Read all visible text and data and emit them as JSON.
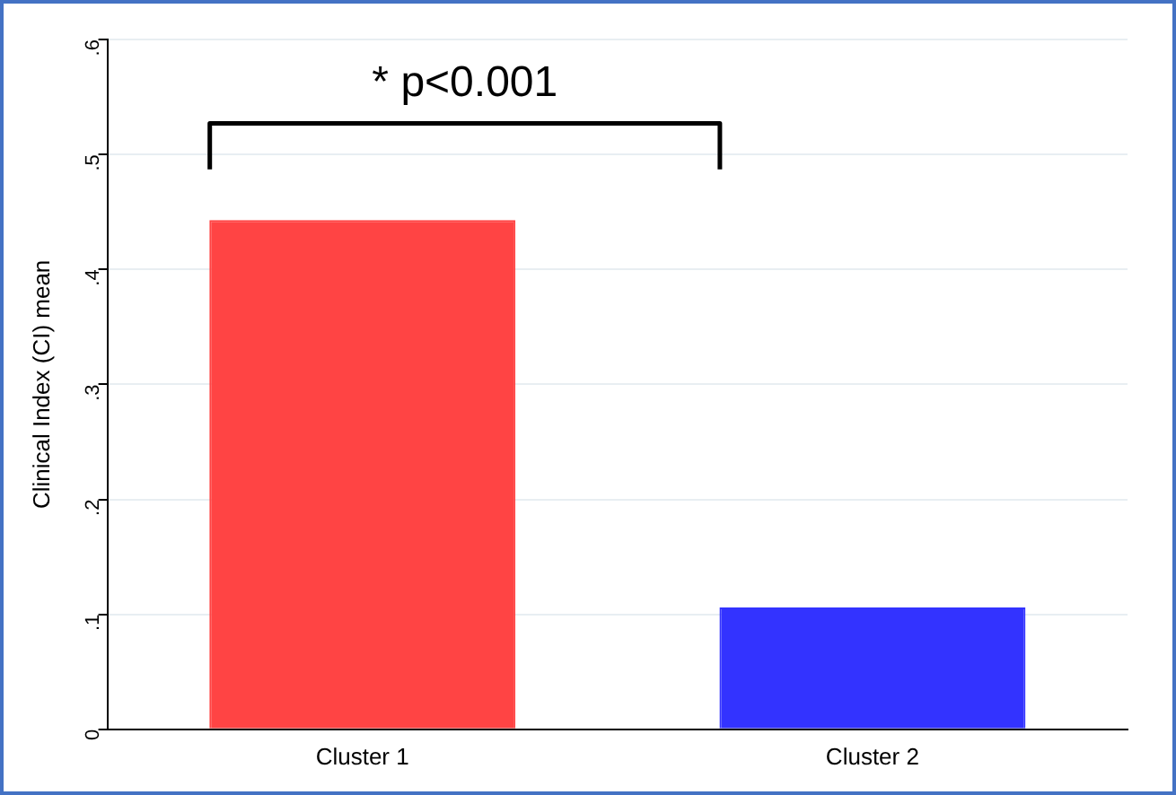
{
  "chart_data": {
    "type": "bar",
    "categories": [
      "Cluster 1",
      "Cluster 2"
    ],
    "values": [
      0.443,
      0.106
    ],
    "colors": [
      "#ff4444",
      "#3333ff"
    ],
    "ylabel": "Clinical Index (CI) mean",
    "ylim": [
      0,
      0.6
    ],
    "yticks": [
      0,
      {
        "value": 0.1,
        "label": ".1"
      },
      {
        "value": 0.2,
        "label": ".2"
      },
      {
        "value": 0.3,
        "label": ".3"
      },
      {
        "value": 0.4,
        "label": ".4"
      },
      {
        "value": 0.5,
        "label": ".5"
      },
      {
        "value": 0.6,
        "label": ".6"
      }
    ],
    "grid": "y",
    "legend": false,
    "annotations": [
      "* p<0.001"
    ]
  }
}
